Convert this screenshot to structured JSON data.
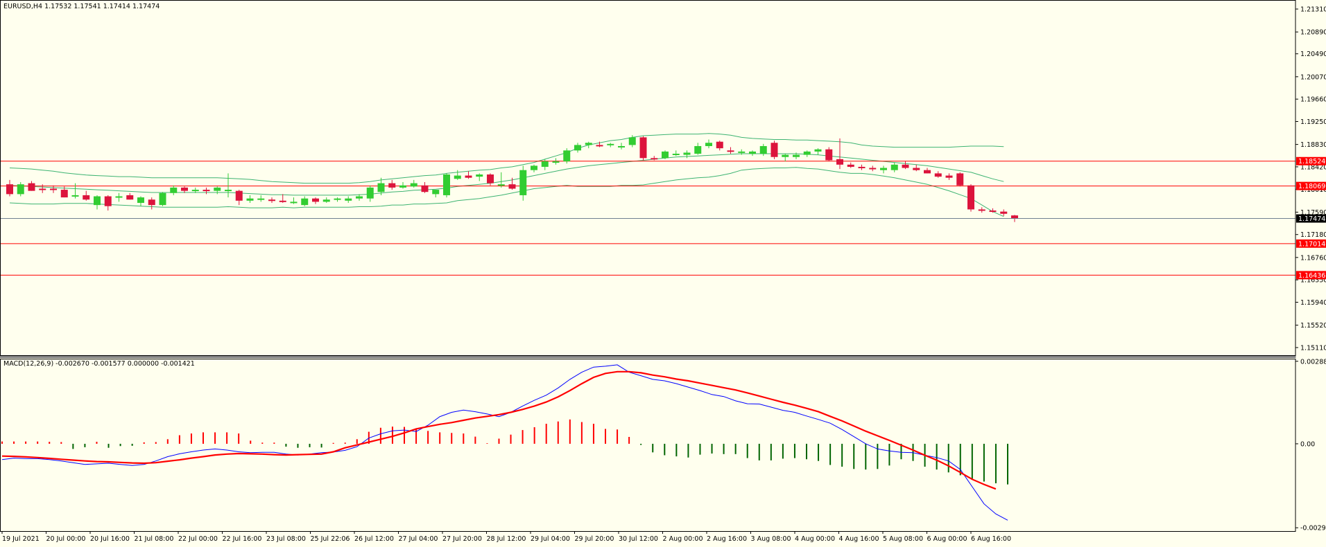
{
  "colors": {
    "background": "#ffffee",
    "frame": "#000000",
    "bull": "#32cd32",
    "bear": "#dc143c",
    "bands": "#3cb371",
    "hline": "#ff0000",
    "price_marker_bg": "#000000",
    "macd_line": "#0000ff",
    "signal_line": "#ff0000",
    "hist_pos": "#ff0000",
    "hist_neg": "#006400"
  },
  "header": {
    "symbol_info": "EURUSD,H4  1.17532 1.17541 1.17414 1.17474",
    "macd_info": "MACD(12,26,9) -0.002670 -0.001577 0.000000 -0.001421"
  },
  "chart_data": [
    {
      "type": "candlestick",
      "title": "EURUSD,H4",
      "ylim": [
        1.1497,
        1.2145
      ],
      "y_ticks": [
        "1.21310",
        "1.20890",
        "1.20490",
        "1.20070",
        "1.19660",
        "1.19250",
        "1.18830",
        "1.18420",
        "1.18010",
        "1.17590",
        "1.17180",
        "1.16760",
        "1.16350",
        "1.15940",
        "1.15520",
        "1.15110"
      ],
      "ohlc": [
        [
          1.181,
          1.1818,
          1.1788,
          1.1792
        ],
        [
          1.1792,
          1.1814,
          1.1788,
          1.181
        ],
        [
          1.1812,
          1.1816,
          1.1798,
          1.1798
        ],
        [
          1.1802,
          1.181,
          1.1794,
          1.18
        ],
        [
          1.1802,
          1.1808,
          1.1794,
          1.18
        ],
        [
          1.18,
          1.1806,
          1.1786,
          1.1786
        ],
        [
          1.179,
          1.1812,
          1.1784,
          1.179
        ],
        [
          1.179,
          1.1798,
          1.178,
          1.1782
        ],
        [
          1.1772,
          1.179,
          1.1764,
          1.1788
        ],
        [
          1.1788,
          1.179,
          1.1762,
          1.177
        ],
        [
          1.1788,
          1.1794,
          1.1778,
          1.1788
        ],
        [
          1.179,
          1.1794,
          1.1782,
          1.1782
        ],
        [
          1.1776,
          1.1788,
          1.177,
          1.1786
        ],
        [
          1.1782,
          1.1786,
          1.1764,
          1.1772
        ],
        [
          1.1772,
          1.1796,
          1.177,
          1.1794
        ],
        [
          1.1794,
          1.1808,
          1.179,
          1.1804
        ],
        [
          1.1804,
          1.1806,
          1.1794,
          1.1798
        ],
        [
          1.1798,
          1.1804,
          1.1794,
          1.18
        ],
        [
          1.18,
          1.1804,
          1.1792,
          1.1798
        ],
        [
          1.1798,
          1.1806,
          1.1792,
          1.1804
        ],
        [
          1.18,
          1.183,
          1.1786,
          1.18
        ],
        [
          1.1798,
          1.18,
          1.1772,
          1.178
        ],
        [
          1.178,
          1.179,
          1.1776,
          1.1784
        ],
        [
          1.1784,
          1.179,
          1.1778,
          1.1784
        ],
        [
          1.1782,
          1.1786,
          1.1776,
          1.178
        ],
        [
          1.178,
          1.1792,
          1.1776,
          1.1778
        ],
        [
          1.1778,
          1.1786,
          1.1774,
          1.1778
        ],
        [
          1.1772,
          1.1788,
          1.177,
          1.1784
        ],
        [
          1.1784,
          1.1786,
          1.1774,
          1.1778
        ],
        [
          1.1778,
          1.1786,
          1.1776,
          1.1782
        ],
        [
          1.1782,
          1.1786,
          1.1778,
          1.1784
        ],
        [
          1.178,
          1.1788,
          1.1776,
          1.1784
        ],
        [
          1.1784,
          1.1792,
          1.178,
          1.1788
        ],
        [
          1.1784,
          1.1808,
          1.1778,
          1.1804
        ],
        [
          1.1796,
          1.1822,
          1.179,
          1.1812
        ],
        [
          1.1812,
          1.1818,
          1.18,
          1.1804
        ],
        [
          1.1804,
          1.1814,
          1.1802,
          1.1808
        ],
        [
          1.1806,
          1.1818,
          1.1804,
          1.1812
        ],
        [
          1.1808,
          1.1814,
          1.1794,
          1.1796
        ],
        [
          1.1792,
          1.18,
          1.1786,
          1.18
        ],
        [
          1.179,
          1.183,
          1.1786,
          1.1828
        ],
        [
          1.182,
          1.1836,
          1.1818,
          1.1826
        ],
        [
          1.1826,
          1.1834,
          1.182,
          1.1822
        ],
        [
          1.1824,
          1.183,
          1.1816,
          1.1828
        ],
        [
          1.1828,
          1.183,
          1.1808,
          1.1812
        ],
        [
          1.1808,
          1.1832,
          1.1804,
          1.181
        ],
        [
          1.181,
          1.1822,
          1.18,
          1.1802
        ],
        [
          1.179,
          1.1844,
          1.178,
          1.1836
        ],
        [
          1.1836,
          1.1846,
          1.1832,
          1.1844
        ],
        [
          1.1842,
          1.1856,
          1.1836,
          1.1852
        ],
        [
          1.185,
          1.1858,
          1.1846,
          1.1852
        ],
        [
          1.1852,
          1.1876,
          1.1848,
          1.1872
        ],
        [
          1.1872,
          1.1886,
          1.1868,
          1.1882
        ],
        [
          1.1882,
          1.1888,
          1.1876,
          1.1886
        ],
        [
          1.1882,
          1.1888,
          1.1878,
          1.188
        ],
        [
          1.1882,
          1.1886,
          1.1878,
          1.1884
        ],
        [
          1.1878,
          1.1886,
          1.1874,
          1.188
        ],
        [
          1.1882,
          1.19,
          1.1878,
          1.1896
        ],
        [
          1.1896,
          1.1898,
          1.1854,
          1.1858
        ],
        [
          1.1858,
          1.1862,
          1.1854,
          1.1856
        ],
        [
          1.1858,
          1.1872,
          1.1856,
          1.187
        ],
        [
          1.1866,
          1.1872,
          1.1862,
          1.1866
        ],
        [
          1.1864,
          1.1872,
          1.1858,
          1.1868
        ],
        [
          1.1866,
          1.1886,
          1.1864,
          1.188
        ],
        [
          1.188,
          1.1892,
          1.1876,
          1.1886
        ],
        [
          1.1888,
          1.189,
          1.1872,
          1.1876
        ],
        [
          1.1872,
          1.1878,
          1.1866,
          1.187
        ],
        [
          1.1868,
          1.1874,
          1.1864,
          1.187
        ],
        [
          1.1866,
          1.1872,
          1.1862,
          1.187
        ],
        [
          1.1866,
          1.1884,
          1.1862,
          1.188
        ],
        [
          1.1886,
          1.189,
          1.1856,
          1.186
        ],
        [
          1.186,
          1.1866,
          1.1852,
          1.1864
        ],
        [
          1.186,
          1.1868,
          1.1856,
          1.1864
        ],
        [
          1.1864,
          1.1872,
          1.186,
          1.187
        ],
        [
          1.187,
          1.1876,
          1.1864,
          1.1874
        ],
        [
          1.1874,
          1.1878,
          1.1852,
          1.1854
        ],
        [
          1.1856,
          1.1894,
          1.1838,
          1.1846
        ],
        [
          1.1846,
          1.185,
          1.184,
          1.1842
        ],
        [
          1.1842,
          1.1846,
          1.1836,
          1.184
        ],
        [
          1.184,
          1.1844,
          1.1834,
          1.1838
        ],
        [
          1.1836,
          1.1844,
          1.183,
          1.184
        ],
        [
          1.1836,
          1.185,
          1.1832,
          1.1846
        ],
        [
          1.1846,
          1.1852,
          1.1838,
          1.184
        ],
        [
          1.184,
          1.1846,
          1.1834,
          1.1836
        ],
        [
          1.1836,
          1.184,
          1.183,
          1.183
        ],
        [
          1.183,
          1.1834,
          1.1822,
          1.1824
        ],
        [
          1.1826,
          1.183,
          1.1818,
          1.1822
        ],
        [
          1.183,
          1.1832,
          1.1806,
          1.1808
        ],
        [
          1.1808,
          1.181,
          1.176,
          1.1764
        ],
        [
          1.1764,
          1.1768,
          1.1758,
          1.1762
        ],
        [
          1.1762,
          1.1766,
          1.1758,
          1.176
        ],
        [
          1.176,
          1.1764,
          1.1752,
          1.1756
        ],
        [
          1.1753,
          1.1754,
          1.1741,
          1.1747
        ]
      ],
      "bands": {
        "upper": [
          1.184,
          1.1839,
          1.1838,
          1.1836,
          1.1834,
          1.1831,
          1.1829,
          1.1827,
          1.1826,
          1.1825,
          1.1824,
          1.1824,
          1.1823,
          1.1822,
          1.1822,
          1.1822,
          1.1822,
          1.1822,
          1.1822,
          1.1822,
          1.1821,
          1.182,
          1.1819,
          1.1817,
          1.1815,
          1.1814,
          1.1813,
          1.1812,
          1.1812,
          1.1812,
          1.1812,
          1.1812,
          1.1813,
          1.1815,
          1.1818,
          1.182,
          1.1822,
          1.1824,
          1.1826,
          1.1827,
          1.183,
          1.1832,
          1.1834,
          1.1836,
          1.1837,
          1.184,
          1.1842,
          1.1846,
          1.185,
          1.1856,
          1.1862,
          1.1868,
          1.1876,
          1.1882,
          1.1886,
          1.189,
          1.1892,
          1.1896,
          1.1899,
          1.19,
          1.1901,
          1.1902,
          1.1902,
          1.1902,
          1.1903,
          1.1902,
          1.19,
          1.1896,
          1.1894,
          1.1893,
          1.1892,
          1.1892,
          1.1891,
          1.1891,
          1.189,
          1.1889,
          1.1888,
          1.1886,
          1.1882,
          1.188,
          1.1879,
          1.1878,
          1.1878,
          1.1878,
          1.1878,
          1.1878,
          1.1878,
          1.1879,
          1.188,
          1.188,
          1.188,
          1.1879
        ],
        "middle": [
          1.1808,
          1.1807,
          1.1806,
          1.1805,
          1.1804,
          1.1803,
          1.1802,
          1.1801,
          1.18,
          1.1799,
          1.1798,
          1.1797,
          1.1796,
          1.1795,
          1.1795,
          1.1795,
          1.1795,
          1.1795,
          1.1795,
          1.1795,
          1.1795,
          1.1794,
          1.1793,
          1.1792,
          1.1791,
          1.1791,
          1.179,
          1.179,
          1.179,
          1.179,
          1.179,
          1.179,
          1.1791,
          1.1792,
          1.1794,
          1.1796,
          1.1797,
          1.1799,
          1.18,
          1.1801,
          1.1803,
          1.1806,
          1.1808,
          1.181,
          1.1812,
          1.1815,
          1.1818,
          1.1822,
          1.1826,
          1.183,
          1.1834,
          1.1838,
          1.1841,
          1.1844,
          1.1846,
          1.1848,
          1.185,
          1.1852,
          1.1854,
          1.1856,
          1.1858,
          1.186,
          1.1861,
          1.1862,
          1.1863,
          1.1864,
          1.1865,
          1.1866,
          1.1866,
          1.1866,
          1.1866,
          1.1866,
          1.1866,
          1.1865,
          1.1864,
          1.1862,
          1.186,
          1.1858,
          1.1856,
          1.1854,
          1.1852,
          1.185,
          1.1848,
          1.1846,
          1.1844,
          1.1841,
          1.1838,
          1.1835,
          1.1832,
          1.1826,
          1.182,
          1.1815
        ],
        "lower": [
          1.1776,
          1.1775,
          1.1774,
          1.1774,
          1.1774,
          1.1775,
          1.1775,
          1.1775,
          1.1774,
          1.1773,
          1.1772,
          1.1771,
          1.177,
          1.1769,
          1.1768,
          1.1768,
          1.1768,
          1.1768,
          1.1768,
          1.1768,
          1.1769,
          1.1768,
          1.1767,
          1.1767,
          1.1767,
          1.1768,
          1.1767,
          1.1768,
          1.1768,
          1.1768,
          1.1768,
          1.1768,
          1.1769,
          1.1769,
          1.177,
          1.1772,
          1.1772,
          1.1774,
          1.1774,
          1.1775,
          1.1776,
          1.178,
          1.1782,
          1.1784,
          1.1787,
          1.179,
          1.1794,
          1.1798,
          1.1802,
          1.1804,
          1.1806,
          1.1808,
          1.1806,
          1.1806,
          1.1806,
          1.1806,
          1.1808,
          1.1808,
          1.1809,
          1.1812,
          1.1815,
          1.1818,
          1.182,
          1.1822,
          1.1823,
          1.1826,
          1.183,
          1.1836,
          1.1838,
          1.1839,
          1.184,
          1.184,
          1.1841,
          1.1839,
          1.1838,
          1.1835,
          1.1832,
          1.183,
          1.183,
          1.1828,
          1.1825,
          1.1822,
          1.1818,
          1.1814,
          1.181,
          1.1804,
          1.1798,
          1.1791,
          1.1784,
          1.1772,
          1.176,
          1.1751
        ]
      },
      "horizontal_levels": [
        "1.18524",
        "1.18069",
        "1.17014",
        "1.16436"
      ],
      "current_price": "1.17474",
      "x_ticks": [
        "19 Jul 2021",
        "20 Jul 00:00",
        "20 Jul 16:00",
        "21 Jul 08:00",
        "22 Jul 00:00",
        "22 Jul 16:00",
        "23 Jul 08:00",
        "25 Jul 22:06",
        "26 Jul 12:00",
        "27 Jul 04:00",
        "27 Jul 20:00",
        "28 Jul 12:00",
        "29 Jul 04:00",
        "29 Jul 20:00",
        "30 Jul 12:00",
        "2 Aug 00:00",
        "2 Aug 16:00",
        "3 Aug 08:00",
        "4 Aug 00:00",
        "4 Aug 16:00",
        "5 Aug 08:00",
        "6 Aug 00:00",
        "6 Aug 16:00"
      ]
    },
    {
      "type": "macd",
      "title": "MACD(12,26,9)",
      "params": [
        12,
        26,
        9
      ],
      "ylim": [
        -0.00305,
        0.00295
      ],
      "y_ticks": [
        "0.002883",
        "0.00",
        "-0.002934"
      ],
      "macd": [
        -0.00055,
        -0.0005,
        -0.00052,
        -0.00052,
        -0.00055,
        -0.0006,
        -0.00066,
        -0.00072,
        -0.0007,
        -0.00068,
        -0.00072,
        -0.00076,
        -0.00072,
        -0.0006,
        -0.00045,
        -0.00035,
        -0.00028,
        -0.00022,
        -0.00018,
        -0.00022,
        -0.00028,
        -0.00031,
        -0.0003,
        -0.0003,
        -0.00036,
        -0.00039,
        -0.00036,
        -0.00031,
        -0.00029,
        -0.00023,
        -0.0001,
        0.0002,
        0.00035,
        0.00045,
        0.00048,
        0.00043,
        0.00065,
        0.00095,
        0.0011,
        0.00118,
        0.00112,
        0.00104,
        0.00095,
        0.0011,
        0.00132,
        0.00152,
        0.0017,
        0.00195,
        0.00225,
        0.0025,
        0.00268,
        0.00271,
        0.00276,
        0.0025,
        0.00238,
        0.00225,
        0.0022,
        0.0021,
        0.00198,
        0.00186,
        0.00172,
        0.00165,
        0.0015,
        0.0014,
        0.00139,
        0.00128,
        0.00117,
        0.0011,
        0.00097,
        0.00085,
        0.00072,
        0.0005,
        0.00025,
        0.0,
        -0.00018,
        -0.00025,
        -0.0003,
        -0.00031,
        -0.0004,
        -0.00048,
        -0.0006,
        -0.0009,
        -0.0015,
        -0.0021,
        -0.00245,
        -0.00267
      ],
      "signal": [
        -0.00043,
        -0.00044,
        -0.00046,
        -0.00048,
        -0.00051,
        -0.00054,
        -0.00057,
        -0.0006,
        -0.00062,
        -0.00063,
        -0.00065,
        -0.00067,
        -0.00068,
        -0.00066,
        -0.00061,
        -0.00056,
        -0.0005,
        -0.00045,
        -0.00039,
        -0.00036,
        -0.00034,
        -0.00035,
        -0.00036,
        -0.00038,
        -0.00039,
        -0.00038,
        -0.00037,
        -0.00036,
        -0.00028,
        -0.00014,
        -4e-05,
        6e-05,
        0.00016,
        0.00026,
        0.00038,
        0.00052,
        0.0006,
        0.00068,
        0.00074,
        0.00082,
        0.0009,
        0.00096,
        0.00102,
        0.0011,
        0.0012,
        0.00132,
        0.00146,
        0.00164,
        0.00186,
        0.0021,
        0.00232,
        0.00246,
        0.00252,
        0.00252,
        0.00248,
        0.0024,
        0.00234,
        0.00226,
        0.0022,
        0.00212,
        0.00204,
        0.00196,
        0.00188,
        0.00178,
        0.00167,
        0.00156,
        0.00145,
        0.00135,
        0.00124,
        0.00112,
        0.00096,
        0.0008,
        0.00062,
        0.00044,
        0.00028,
        0.00012,
        -5e-05,
        -0.00022,
        -0.0004,
        -0.00057,
        -0.00077,
        -0.001,
        -0.00124,
        -0.00142,
        -0.00158
      ],
      "histogram": [
        8e-05,
        8e-05,
        8e-05,
        8e-05,
        7e-05,
        6e-05,
        -0.00018,
        -0.00012,
        7e-05,
        -0.00014,
        -8e-05,
        -7e-05,
        5e-05,
        6e-05,
        0.00016,
        0.0003,
        0.00036,
        0.0004,
        0.0004,
        0.0004,
        0.00036,
        0.00011,
        4e-05,
        4e-05,
        -0.0001,
        -0.00014,
        -0.00012,
        -0.00013,
        3e-05,
        4e-05,
        0.00016,
        0.00042,
        0.00056,
        0.0006,
        0.00059,
        0.0005,
        0.00045,
        0.0004,
        0.00038,
        0.00036,
        0.00025,
        2e-05,
        0.00018,
        0.00032,
        0.00048,
        0.00058,
        0.0007,
        0.00078,
        0.00085,
        0.00076,
        0.0007,
        0.00052,
        0.0005,
        0.00024,
        -4e-05,
        -0.0003,
        -0.0004,
        -0.00044,
        -0.00048,
        -0.00038,
        -0.00034,
        -0.00036,
        -0.00036,
        -0.0005,
        -0.00058,
        -0.00058,
        -0.00052,
        -0.0005,
        -0.00054,
        -0.0006,
        -0.00074,
        -0.0008,
        -0.00088,
        -0.0009,
        -0.00088,
        -0.00076,
        -0.00054,
        -0.0006,
        -0.0008,
        -0.0009,
        -0.001,
        -0.0011,
        -0.00125,
        -0.00132,
        -0.00138,
        -0.00142
      ]
    }
  ]
}
